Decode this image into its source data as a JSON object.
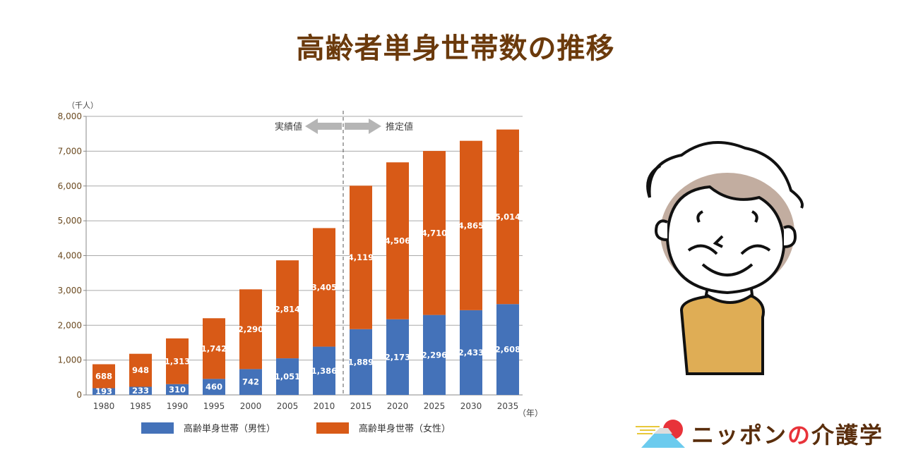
{
  "title": "高齢者単身世帯数の推移",
  "chart_data": {
    "type": "bar",
    "stacked": true,
    "categories": [
      "1980",
      "1985",
      "1990",
      "1995",
      "2000",
      "2005",
      "2010",
      "2015",
      "2020",
      "2025",
      "2030",
      "2035"
    ],
    "series": [
      {
        "name": "高齢単身世帯（男性）",
        "color": "#4472b9",
        "values": [
          193,
          233,
          310,
          460,
          742,
          1051,
          1386,
          1889,
          2173,
          2296,
          2433,
          2608
        ]
      },
      {
        "name": "高齢単身世帯（女性）",
        "color": "#d85a17",
        "values": [
          688,
          948,
          1313,
          1742,
          2290,
          2814,
          3405,
          4119,
          4506,
          4710,
          4865,
          5014
        ]
      }
    ],
    "yunit": "（千人）",
    "xunit": "（年）",
    "ylim": [
      0,
      8000
    ],
    "yticks": [
      "0",
      "1,000",
      "2,000",
      "3,000",
      "4,000",
      "5,000",
      "6,000",
      "7,000",
      "8,000"
    ],
    "grid": true,
    "annotations": {
      "actual": "実績値",
      "estimate": "推定値",
      "divider_after": "2010"
    },
    "legend": "bottom"
  },
  "logo": {
    "text_a": "ニッポン",
    "text_no": "の",
    "text_b": "介護学"
  }
}
